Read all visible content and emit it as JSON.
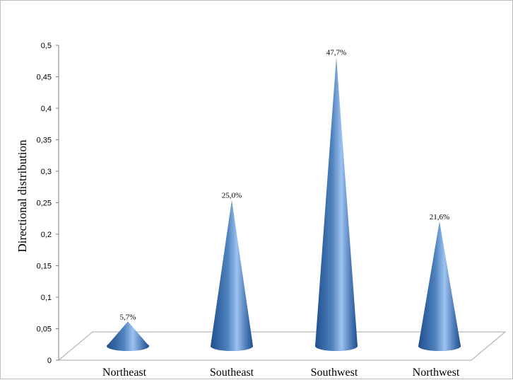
{
  "chart_data": {
    "type": "bar",
    "shape": "cone-3d",
    "title": "",
    "xlabel": "",
    "ylabel": "Directional distribution",
    "ylim": [
      0,
      0.5
    ],
    "y_ticks": [
      "0",
      "0,05",
      "0,1",
      "0,15",
      "0,2",
      "0,25",
      "0,3",
      "0,35",
      "0,4",
      "0,45",
      "0,5"
    ],
    "categories": [
      "Northeast",
      "Southeast",
      "Southwest",
      "Northwest"
    ],
    "values": [
      0.057,
      0.25,
      0.477,
      0.216
    ],
    "data_labels": [
      "5,7%",
      "25,0%",
      "47,7%",
      "21,6%"
    ],
    "legend": "none",
    "grid": false,
    "colors": {
      "cone_dark": "#1f4f8f",
      "cone_mid": "#4f81bd",
      "cone_light": "#9cc2ef",
      "floor_edge": "#a6a6a6"
    }
  }
}
